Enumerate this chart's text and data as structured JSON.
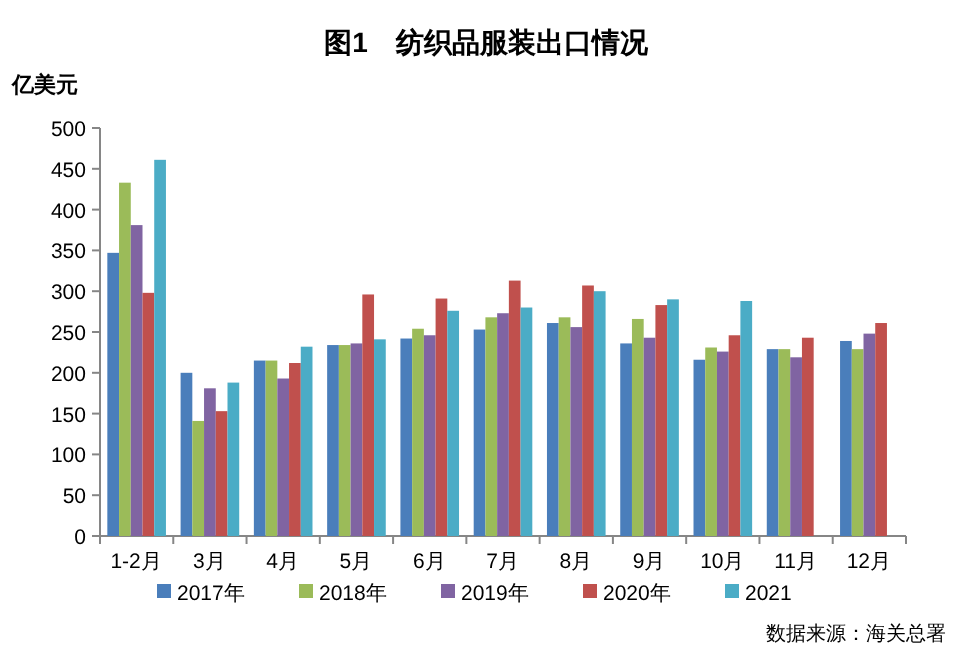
{
  "chart_data": {
    "type": "bar",
    "title": "图1　纺织品服装出口情况",
    "ylabel": "亿美元",
    "categories": [
      "1-2月",
      "3月",
      "4月",
      "5月",
      "6月",
      "7月",
      "8月",
      "9月",
      "10月",
      "11月",
      "12月"
    ],
    "series": [
      {
        "name": "2017年",
        "color": "#4a7ebb",
        "values": [
          347,
          200,
          215,
          234,
          242,
          253,
          261,
          236,
          216,
          229,
          239
        ]
      },
      {
        "name": "2018年",
        "color": "#9bbb59",
        "values": [
          433,
          141,
          215,
          234,
          254,
          268,
          268,
          266,
          231,
          229,
          229
        ]
      },
      {
        "name": "2019年",
        "color": "#8064a2",
        "values": [
          381,
          181,
          193,
          236,
          246,
          273,
          256,
          243,
          226,
          219,
          248
        ]
      },
      {
        "name": "2020年",
        "color": "#c0504d",
        "values": [
          298,
          153,
          212,
          296,
          291,
          313,
          307,
          283,
          246,
          243,
          261
        ]
      },
      {
        "name": "2021",
        "color": "#4bacc6",
        "values": [
          461,
          188,
          232,
          241,
          276,
          280,
          300,
          290,
          288,
          null,
          null
        ]
      }
    ],
    "ylim": [
      0,
      500
    ],
    "yticks": [
      0,
      50,
      100,
      150,
      200,
      250,
      300,
      350,
      400,
      450,
      500
    ],
    "grid": false,
    "legend": "bottom",
    "annotations": [
      "数据来源：海关总署"
    ]
  }
}
